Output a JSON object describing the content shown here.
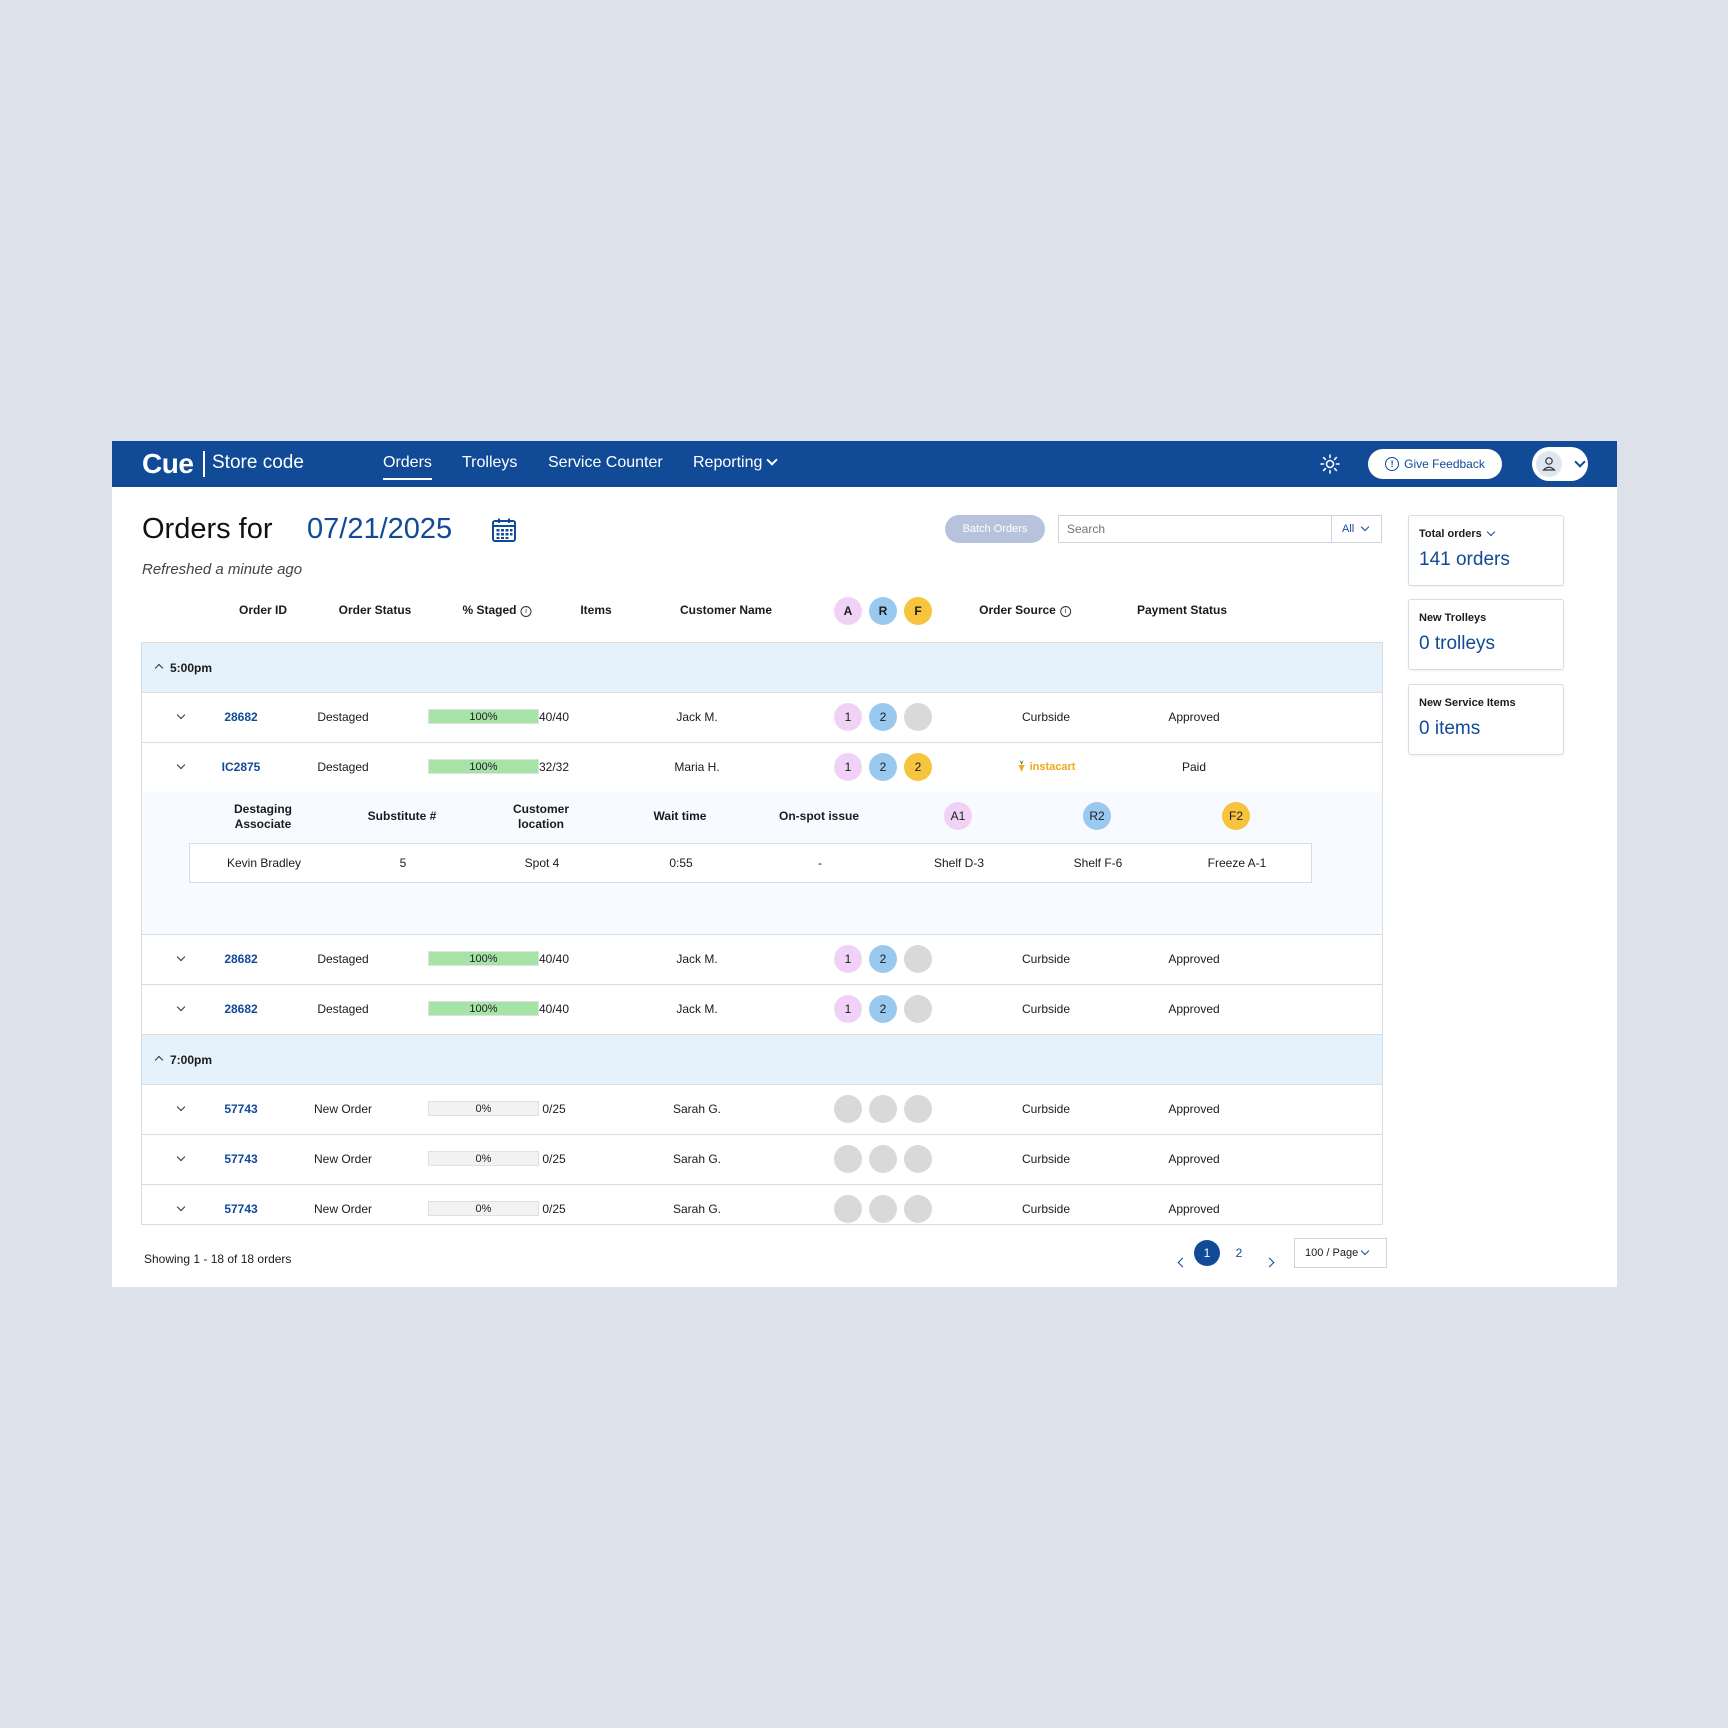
{
  "header": {
    "logo": "Cue",
    "store": "Store code",
    "nav": [
      {
        "label": "Orders",
        "active": true
      },
      {
        "label": "Trolleys",
        "active": false
      },
      {
        "label": "Service Counter",
        "active": false
      },
      {
        "label": "Reporting",
        "active": false
      }
    ],
    "theme_icon": "sun-icon",
    "feedback_label": "Give Feedback",
    "user_icon": "user-icon"
  },
  "page": {
    "title": "Orders for",
    "date": "07/21/2025",
    "calendar_icon": "calendar-icon",
    "refreshed": "Refreshed a minute ago",
    "batch_label": "Batch Orders",
    "search_placeholder": "Search",
    "search_filter": "All"
  },
  "table": {
    "columns": [
      "Order ID",
      "Order Status",
      "% Staged",
      "Items",
      "Customer Name",
      "Order Source",
      "Payment Status"
    ],
    "temp_headers": [
      {
        "letter": "A",
        "color": "#f1d2f7"
      },
      {
        "letter": "R",
        "color": "#9ac9ef"
      },
      {
        "letter": "F",
        "color": "#f6c43d"
      }
    ],
    "groups": [
      {
        "label": "5:00pm"
      },
      {
        "label": "7:00pm"
      }
    ],
    "rows": [
      {
        "id": "28682",
        "status": "Destaged",
        "staged": "100%",
        "staged_pct": 100,
        "items": "40/40",
        "customer": "Jack M.",
        "temps": [
          "1",
          "2",
          ""
        ],
        "source": "Curbside",
        "payment": "Approved"
      },
      {
        "id": "IC2875",
        "status": "Destaged",
        "staged": "100%",
        "staged_pct": 100,
        "items": "32/32",
        "customer": "Maria H.",
        "temps": [
          "1",
          "2",
          "2"
        ],
        "source": "instacart",
        "payment": "Paid"
      },
      {
        "id": "28682",
        "status": "Destaged",
        "staged": "100%",
        "staged_pct": 100,
        "items": "40/40",
        "customer": "Jack M.",
        "temps": [
          "1",
          "2",
          ""
        ],
        "source": "Curbside",
        "payment": "Approved"
      },
      {
        "id": "28682",
        "status": "Destaged",
        "staged": "100%",
        "staged_pct": 100,
        "items": "40/40",
        "customer": "Jack M.",
        "temps": [
          "1",
          "2",
          ""
        ],
        "source": "Curbside",
        "payment": "Approved"
      },
      {
        "id": "57743",
        "status": "New Order",
        "staged": "0%",
        "staged_pct": 0,
        "items": "0/25",
        "customer": "Sarah G.",
        "temps": [
          "",
          "",
          ""
        ],
        "source": "Curbside",
        "payment": "Approved"
      },
      {
        "id": "57743",
        "status": "New Order",
        "staged": "0%",
        "staged_pct": 0,
        "items": "0/25",
        "customer": "Sarah G.",
        "temps": [
          "",
          "",
          ""
        ],
        "source": "Curbside",
        "payment": "Approved"
      },
      {
        "id": "57743",
        "status": "New Order",
        "staged": "0%",
        "staged_pct": 0,
        "items": "0/25",
        "customer": "Sarah G.",
        "temps": [
          "",
          "",
          ""
        ],
        "source": "Curbside",
        "payment": "Approved"
      }
    ],
    "expanded": {
      "headers": [
        "Destaging\nAssociate",
        "Substitute #",
        "Customer\nlocation",
        "Wait time",
        "On-spot issue"
      ],
      "temp_headers": [
        "A1",
        "R2",
        "F2"
      ],
      "values": [
        "Kevin Bradley",
        "5",
        "Spot 4",
        "0:55",
        "-",
        "Shelf D-3",
        "Shelf F-6",
        "Freeze A-1"
      ]
    }
  },
  "footer": {
    "showing": "Showing 1 - 18 of 18 orders",
    "pages": [
      "1",
      "2"
    ],
    "current_page": "1",
    "per_page": "100 / Page"
  },
  "cards": [
    {
      "label": "Total orders",
      "value": "141 orders",
      "dropdown": true
    },
    {
      "label": "New Trolleys",
      "value": "0 trolleys",
      "dropdown": false
    },
    {
      "label": "New Service Items",
      "value": "0 items",
      "dropdown": false
    }
  ],
  "colors": {
    "primary": "#114a97",
    "ambient": "#f1d2f7",
    "refrigerated": "#9ac9ef",
    "frozen": "#f6c43d",
    "empty": "#d9d9d9",
    "staged_fill": "#a6e3a7",
    "group_bg": "#e5f2fc"
  }
}
